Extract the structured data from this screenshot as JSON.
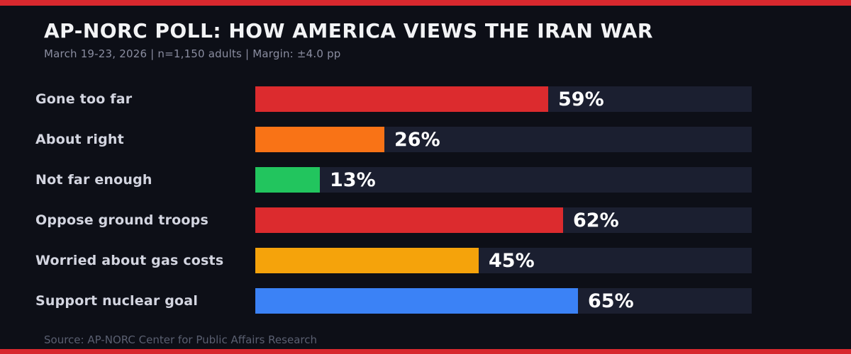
{
  "page": {
    "background_color": "#0d0f17",
    "accent_stripe_color": "#d7282e"
  },
  "header": {
    "title": "AP-NORC POLL: HOW AMERICA VIEWS THE IRAN WAR",
    "subtitle": "March 19-23, 2026 | n=1,150 adults | Margin: ±4.0 pp"
  },
  "chart_data": {
    "type": "bar",
    "orientation": "horizontal",
    "title": "AP-NORC POLL: HOW AMERICA VIEWS THE IRAN WAR",
    "categories": [
      "Gone too far",
      "About right",
      "Not far enough",
      "Oppose ground troops",
      "Worried about gas costs",
      "Support nuclear goal"
    ],
    "values": [
      59,
      26,
      13,
      62,
      45,
      65
    ],
    "unit": "%",
    "value_labels": [
      "59%",
      "26%",
      "13%",
      "62%",
      "45%",
      "65%"
    ],
    "xlim": [
      0,
      100
    ],
    "bar_colors": [
      "#dc2b2e",
      "#f97316",
      "#22c55e",
      "#dc2b2e",
      "#f5a30b",
      "#3b82f6"
    ],
    "track_color": "#1b1f30",
    "value_label_position": "outside-right",
    "grid": false,
    "legend": false
  },
  "footer": {
    "source": "Source: AP-NORC Center for Public Affairs Research"
  }
}
